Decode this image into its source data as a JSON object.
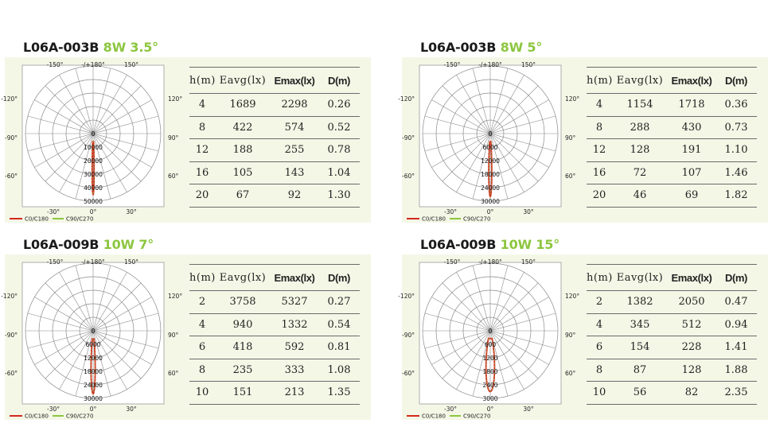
{
  "colors": {
    "accent": "#8cc63f",
    "c0_line": "#d4281c",
    "c90_line": "#8cc63f",
    "panel_bg": "#f4f7e6"
  },
  "legend": {
    "c0": "C0/C180",
    "c90": "C90/C270"
  },
  "angle_labels": {
    "top": "-/+180°",
    "tl": "-150°",
    "tr": "150°",
    "l1": "-120°",
    "r1": "120°",
    "l2": "-90°",
    "r2": "90°",
    "l3": "-60°",
    "r3": "60°",
    "bl": "-30°",
    "b": "0°",
    "br": "30°"
  },
  "chart_data": [
    {
      "type": "polar",
      "title_model": "L06A-003B",
      "title_spec": "8W 3.5°",
      "radial_labels": [
        "0",
        "10000",
        "20000",
        "30000",
        "40000",
        "50000"
      ],
      "radial_max": 50000,
      "beam_deg": 3.5,
      "peak": 45000,
      "table": {
        "headers": [
          "h(m)",
          "Eavg(lx)",
          "Emax(lx)",
          "D(m)"
        ],
        "rows": [
          [
            "4",
            "1689",
            "2298",
            "0.26"
          ],
          [
            "8",
            "422",
            "574",
            "0.52"
          ],
          [
            "12",
            "188",
            "255",
            "0.78"
          ],
          [
            "16",
            "105",
            "143",
            "1.04"
          ],
          [
            "20",
            "67",
            "92",
            "1.30"
          ]
        ]
      }
    },
    {
      "type": "polar",
      "title_model": "L06A-003B",
      "title_spec": "8W 5°",
      "radial_labels": [
        "0",
        "6000",
        "12000",
        "18000",
        "24000",
        "30000"
      ],
      "radial_max": 30000,
      "beam_deg": 5,
      "peak": 28000,
      "table": {
        "headers": [
          "h(m)",
          "Eavg(lx)",
          "Emax(lx)",
          "D(m)"
        ],
        "rows": [
          [
            "4",
            "1154",
            "1718",
            "0.36"
          ],
          [
            "8",
            "288",
            "430",
            "0.73"
          ],
          [
            "12",
            "128",
            "191",
            "1.10"
          ],
          [
            "16",
            "72",
            "107",
            "1.46"
          ],
          [
            "20",
            "46",
            "69",
            "1.82"
          ]
        ]
      }
    },
    {
      "type": "polar",
      "title_model": "L06A-009B",
      "title_spec": "10W 7°",
      "radial_labels": [
        "0",
        "6000",
        "12000",
        "18000",
        "24000",
        "30000"
      ],
      "radial_max": 30000,
      "beam_deg": 7,
      "peak": 28000,
      "table": {
        "headers": [
          "h(m)",
          "Eavg(lx)",
          "Emax(lx)",
          "D(m)"
        ],
        "rows": [
          [
            "2",
            "3758",
            "5327",
            "0.27"
          ],
          [
            "4",
            "940",
            "1332",
            "0.54"
          ],
          [
            "6",
            "418",
            "592",
            "0.81"
          ],
          [
            "8",
            "235",
            "333",
            "1.08"
          ],
          [
            "10",
            "151",
            "213",
            "1.35"
          ]
        ]
      }
    },
    {
      "type": "polar",
      "title_model": "L06A-009B",
      "title_spec": "10W 15°",
      "radial_labels": [
        "0",
        "600",
        "1200",
        "1800",
        "2400",
        "3000"
      ],
      "radial_max": 3000,
      "beam_deg": 15,
      "peak": 2700,
      "table": {
        "headers": [
          "h(m)",
          "Eavg(lx)",
          "Emax(lx)",
          "D(m)"
        ],
        "rows": [
          [
            "2",
            "1382",
            "2050",
            "0.47"
          ],
          [
            "4",
            "345",
            "512",
            "0.94"
          ],
          [
            "6",
            "154",
            "228",
            "1.41"
          ],
          [
            "8",
            "87",
            "128",
            "1.88"
          ],
          [
            "10",
            "56",
            "82",
            "2.35"
          ]
        ]
      }
    }
  ]
}
